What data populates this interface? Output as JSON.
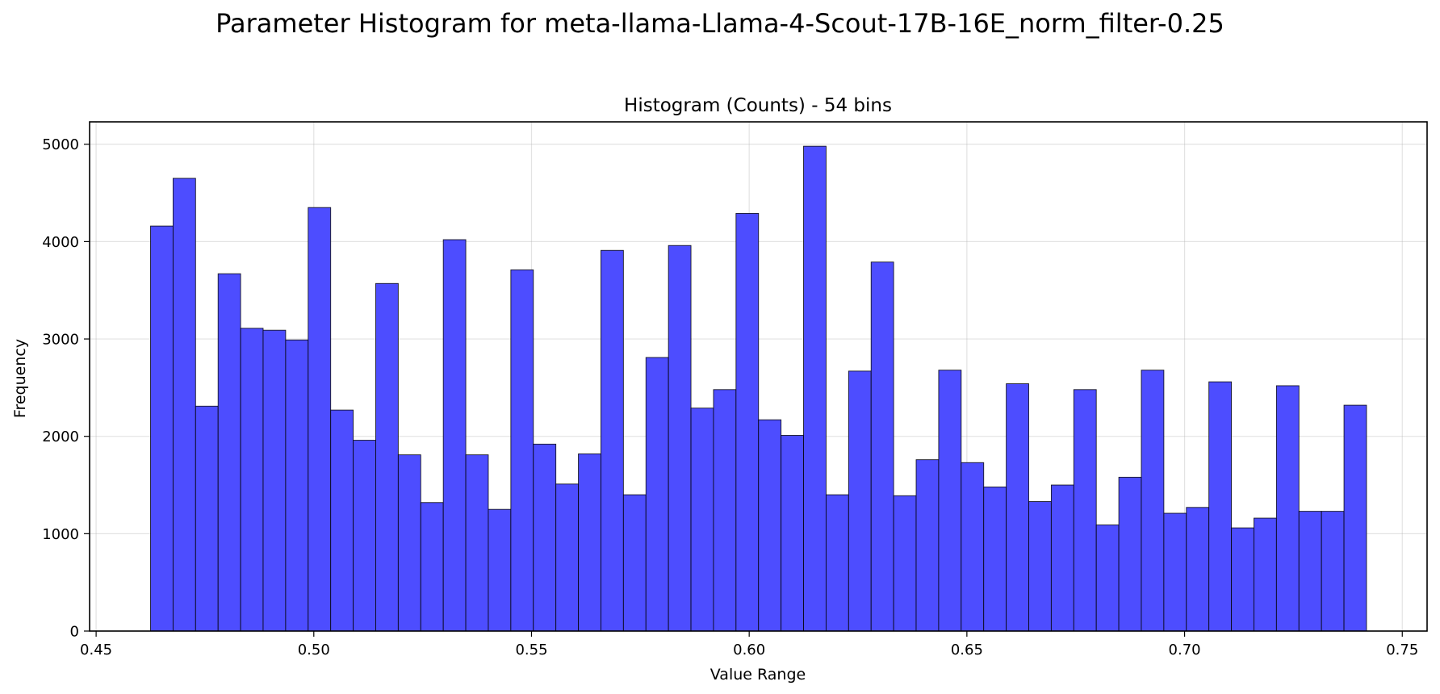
{
  "figure": {
    "suptitle": "Parameter Histogram for meta-llama-Llama-4-Scout-17B-16E_norm_filter-0.25"
  },
  "chart_data": {
    "type": "bar",
    "title": "Histogram (Counts) - 54 bins",
    "xlabel": "Value Range",
    "ylabel": "Frequency",
    "bar_color": "#4d4dff",
    "edge_color": "#000000",
    "grid": true,
    "xlim": [
      0.4485,
      0.7557
    ],
    "ylim": [
      0,
      5230
    ],
    "xticks": [
      0.45,
      0.5,
      0.55,
      0.6,
      0.65,
      0.7,
      0.75
    ],
    "xtick_labels": [
      "0.45",
      "0.50",
      "0.55",
      "0.60",
      "0.65",
      "0.70",
      "0.75"
    ],
    "yticks": [
      0,
      1000,
      2000,
      3000,
      4000,
      5000
    ],
    "ytick_labels": [
      "0",
      "1000",
      "2000",
      "3000",
      "4000",
      "5000"
    ],
    "bin_start": 0.4625,
    "bin_width": 0.005172,
    "values": [
      4160,
      4650,
      2310,
      3670,
      3110,
      3090,
      2990,
      4350,
      2270,
      1960,
      3570,
      1810,
      1320,
      4020,
      1810,
      1250,
      3710,
      1920,
      1510,
      1820,
      3910,
      1400,
      2810,
      3960,
      2290,
      2480,
      4290,
      2170,
      2010,
      4980,
      1400,
      2670,
      3790,
      1390,
      1760,
      2680,
      1730,
      1480,
      2540,
      1330,
      1500,
      2480,
      1090,
      1580,
      2680,
      1210,
      1270,
      2560,
      1060,
      1160,
      2520,
      1230,
      1230,
      2320
    ]
  }
}
